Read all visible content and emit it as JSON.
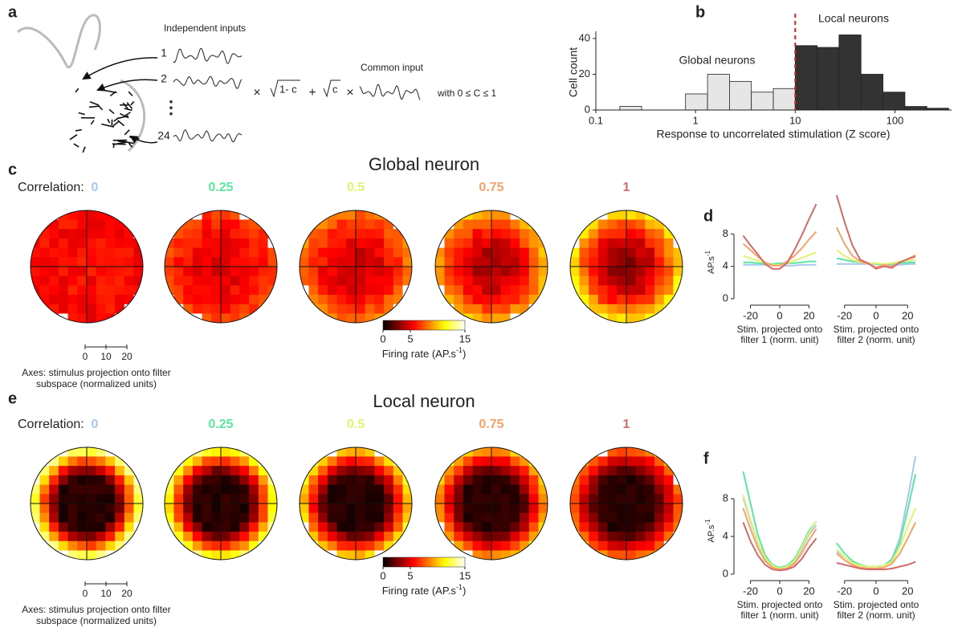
{
  "panel_labels": [
    "a",
    "b",
    "c",
    "d",
    "e",
    "f"
  ],
  "panel_a": {
    "independent_inputs": "Independent inputs",
    "input_numbers": [
      "1",
      "2",
      "24"
    ],
    "operators": [
      "×",
      "+",
      "×"
    ],
    "sqrt_terms": [
      "1- c",
      "c"
    ],
    "common_input": "Common input",
    "condition": "with 0 ≤ C ≤ 1"
  },
  "correlations": [
    {
      "value": 0,
      "color": "#a6c8ef"
    },
    {
      "value": 0.25,
      "color": "#5ce6a0"
    },
    {
      "value": 0.5,
      "color": "#e3f26e"
    },
    {
      "value": 0.75,
      "color": "#f3a36a"
    },
    {
      "value": 1,
      "color": "#d46a6a"
    }
  ],
  "panel_c": {
    "title": "Global neuron",
    "correlation_label": "Correlation:",
    "scale_ticks": [
      0,
      10,
      20
    ],
    "axes_caption": [
      "Axes: stimulus projection onto filter",
      "subspace (normalized units)"
    ],
    "colorbar": {
      "lim": [
        0,
        15
      ],
      "ticks": [
        0,
        5,
        15
      ],
      "label": "Firing rate (AP.s",
      "label_superscript": "-1",
      "label_end": ")"
    }
  },
  "panel_e": {
    "title": "Local neuron",
    "correlation_label": "Correlation:",
    "scale_ticks": [
      0,
      10,
      20
    ],
    "axes_caption": [
      "Axes: stimulus projection onto filter",
      "subspace (normalized units)"
    ],
    "colorbar": {
      "lim": [
        0,
        15
      ],
      "ticks": [
        0,
        5,
        15
      ],
      "label": "Firing rate (AP.s",
      "label_superscript": "-1",
      "label_end": ")"
    }
  },
  "chart_data": [
    {
      "type": "histogram",
      "xscale": "log",
      "bins": [
        0.174,
        0.288,
        0.479,
        0.794,
        1.32,
        2.19,
        3.63,
        6.03,
        10,
        16.6,
        27.5,
        45.7,
        75.9,
        126,
        209,
        347
      ],
      "values": [
        2,
        0,
        0,
        9,
        20,
        16,
        10,
        12,
        36,
        35,
        42,
        20,
        10,
        2,
        1
      ],
      "xlim": [
        0.1,
        370
      ],
      "xticks": [
        0.1,
        1,
        10,
        100
      ],
      "ylim": [
        0,
        44
      ],
      "yticks": [
        0,
        20,
        40
      ],
      "ylabel": "Cell count",
      "xlabel": "Response to uncorrelated stimulation  (Z score)",
      "threshold": 10,
      "threshold_color": "#cc2222",
      "color_below": "#e6e6e6",
      "color_above": "#333333",
      "annotations": [
        "Global  neurons",
        "Local neurons"
      ]
    },
    {
      "type": "line",
      "ylabel": "AP.s",
      "ylabel_superscript": "-1",
      "xlabel": [
        "Stim. projected onto",
        "filter 1 (norm. unit)"
      ],
      "x": [
        -25,
        -20,
        -15,
        -10,
        -5,
        0,
        5,
        10,
        15,
        20,
        25
      ],
      "xlim": [
        -28,
        28
      ],
      "xticks": [
        -20,
        0,
        20
      ],
      "ylim": [
        0,
        13
      ],
      "yticks": [
        0,
        4,
        8
      ],
      "series": [
        {
          "color": "#a6c8ef",
          "values": [
            4.2,
            4.2,
            4.2,
            4.2,
            4.2,
            4.1,
            4.1,
            4.1,
            4.2,
            4.2,
            4.2
          ]
        },
        {
          "color": "#5ce6a0",
          "values": [
            4.5,
            4.5,
            4.4,
            4.3,
            4.3,
            4.4,
            4.4,
            4.4,
            4.5,
            4.6,
            4.6
          ]
        },
        {
          "color": "#e3f26e",
          "values": [
            5.3,
            5.0,
            4.7,
            4.4,
            4.2,
            4.2,
            4.4,
            4.7,
            5.0,
            5.4,
            5.7
          ]
        },
        {
          "color": "#f3a36a",
          "values": [
            6.8,
            6.0,
            5.2,
            4.5,
            4.1,
            4.1,
            4.6,
            5.3,
            6.2,
            7.3,
            8.3
          ]
        },
        {
          "color": "#d46a6a",
          "values": [
            7.8,
            6.6,
            5.5,
            4.3,
            3.7,
            3.7,
            4.4,
            6.0,
            7.8,
            9.8,
            11.7
          ]
        }
      ]
    },
    {
      "type": "line",
      "xlabel": [
        "Stim. projected onto",
        "filter 2 (norm. unit)"
      ],
      "x": [
        -25,
        -20,
        -15,
        -10,
        -5,
        0,
        5,
        10,
        15,
        20,
        25
      ],
      "xlim": [
        -28,
        28
      ],
      "xticks": [
        -20,
        0,
        20
      ],
      "ylim": [
        0,
        13
      ],
      "series": [
        {
          "color": "#a6c8ef",
          "values": [
            4.3,
            4.3,
            4.3,
            4.3,
            4.3,
            4.3,
            4.2,
            4.2,
            4.2,
            4.3,
            4.3
          ]
        },
        {
          "color": "#5ce6a0",
          "values": [
            5.0,
            4.8,
            4.6,
            4.5,
            4.4,
            4.3,
            4.3,
            4.3,
            4.4,
            4.5,
            4.5
          ]
        },
        {
          "color": "#e3f26e",
          "values": [
            6.0,
            5.3,
            4.8,
            4.5,
            4.4,
            4.4,
            4.3,
            4.4,
            4.6,
            4.7,
            4.8
          ]
        },
        {
          "color": "#f3a36a",
          "values": [
            8.8,
            6.8,
            5.3,
            4.6,
            4.3,
            3.9,
            4.2,
            4.0,
            4.5,
            4.9,
            5.4
          ]
        },
        {
          "color": "#d46a6a",
          "values": [
            12.8,
            9.5,
            6.6,
            4.8,
            4.4,
            3.7,
            4.0,
            3.8,
            4.5,
            4.9,
            5.2
          ]
        }
      ]
    },
    {
      "type": "line",
      "ylabel": "AP.s",
      "ylabel_superscript": "-1",
      "xlabel": [
        "Stim. projected onto",
        "filter 1 (norm. unit)"
      ],
      "x": [
        -25,
        -20,
        -15,
        -10,
        -5,
        0,
        5,
        10,
        15,
        20,
        25
      ],
      "xlim": [
        -28,
        28
      ],
      "xticks": [
        -20,
        0,
        20
      ],
      "ylim": [
        0,
        12.6
      ],
      "yticks": [
        0,
        4,
        8
      ],
      "series": [
        {
          "color": "#a6c8ef",
          "values": [
            8.1,
            5.6,
            3.3,
            1.6,
            0.8,
            0.6,
            0.7,
            1.3,
            2.6,
            4.2,
            5.2
          ]
        },
        {
          "color": "#5ce6a0",
          "values": [
            10.9,
            7.5,
            4.2,
            2.0,
            1.0,
            0.7,
            0.9,
            1.6,
            3.0,
            4.6,
            5.6
          ]
        },
        {
          "color": "#e3f26e",
          "values": [
            8.4,
            5.8,
            3.4,
            1.7,
            0.9,
            0.6,
            0.8,
            1.4,
            2.8,
            4.4,
            5.6
          ]
        },
        {
          "color": "#f3a36a",
          "values": [
            7.0,
            4.8,
            2.8,
            1.4,
            0.7,
            0.5,
            0.6,
            1.1,
            2.2,
            3.6,
            4.8
          ]
        },
        {
          "color": "#d46a6a",
          "values": [
            5.5,
            3.5,
            2.0,
            1.0,
            0.5,
            0.4,
            0.5,
            0.8,
            1.6,
            2.8,
            3.8
          ]
        }
      ]
    },
    {
      "type": "line",
      "xlabel": [
        "Stim. projected onto",
        "filter 2 (norm. unit)"
      ],
      "x": [
        -25,
        -20,
        -15,
        -10,
        -5,
        0,
        5,
        10,
        15,
        20,
        25
      ],
      "xlim": [
        -28,
        28
      ],
      "xticks": [
        -20,
        0,
        20
      ],
      "ylim": [
        0,
        12.6
      ],
      "series": [
        {
          "color": "#a6c8ef",
          "values": [
            2.4,
            1.8,
            1.2,
            0.9,
            0.8,
            0.8,
            0.9,
            1.6,
            3.8,
            8.0,
            12.5
          ]
        },
        {
          "color": "#5ce6a0",
          "values": [
            3.3,
            2.2,
            1.4,
            1.0,
            0.8,
            0.8,
            0.9,
            1.5,
            3.3,
            6.8,
            10.6
          ]
        },
        {
          "color": "#e3f26e",
          "values": [
            2.6,
            1.8,
            1.2,
            0.9,
            0.8,
            0.8,
            0.9,
            1.3,
            2.8,
            5.0,
            7.0
          ]
        },
        {
          "color": "#f3a36a",
          "values": [
            2.2,
            1.5,
            1.0,
            0.7,
            0.6,
            0.6,
            0.7,
            1.1,
            2.2,
            3.8,
            5.5
          ]
        },
        {
          "color": "#d46a6a",
          "values": [
            1.2,
            1.0,
            0.8,
            0.6,
            0.5,
            0.5,
            0.5,
            0.6,
            0.8,
            1.0,
            1.3
          ]
        }
      ]
    }
  ]
}
